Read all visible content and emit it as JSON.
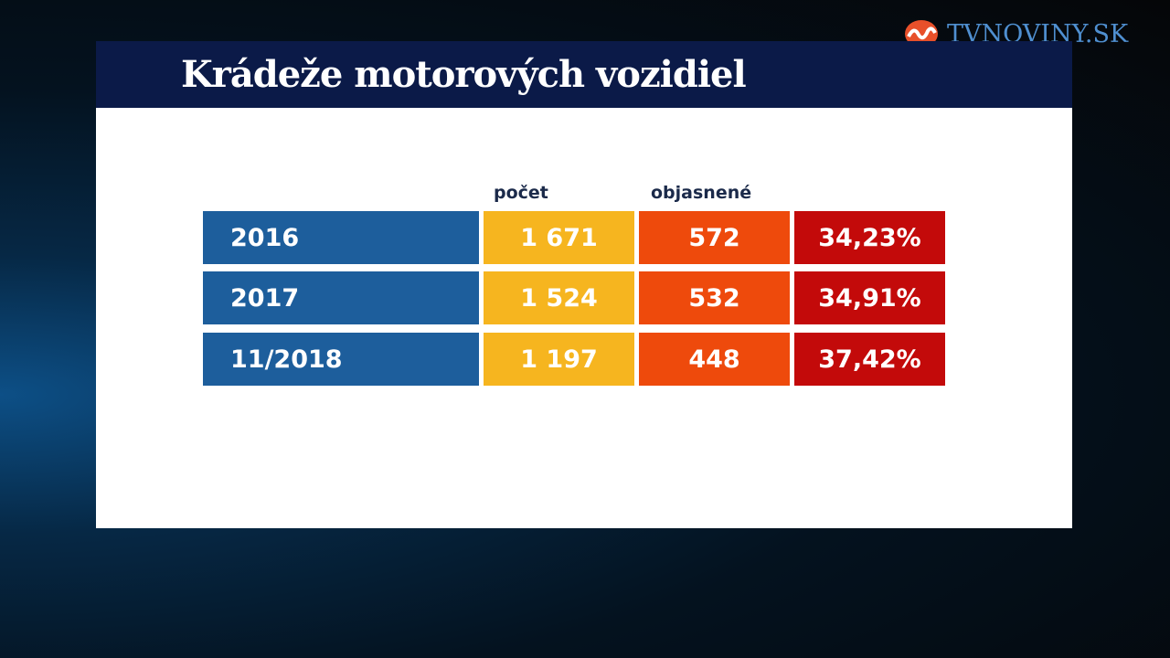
{
  "logo": "TVNOVINY.SK",
  "title": "Krádeže motorových vozidiel",
  "table": {
    "headers": {
      "count": "počet",
      "solved": "objasnené"
    },
    "rows": [
      [
        "2016",
        "1 671",
        "572",
        "34,23%"
      ],
      [
        "2017",
        "1 524",
        "532",
        "34,91%"
      ],
      [
        "11/2018",
        "1 197",
        "448",
        "37,42%"
      ]
    ]
  }
}
